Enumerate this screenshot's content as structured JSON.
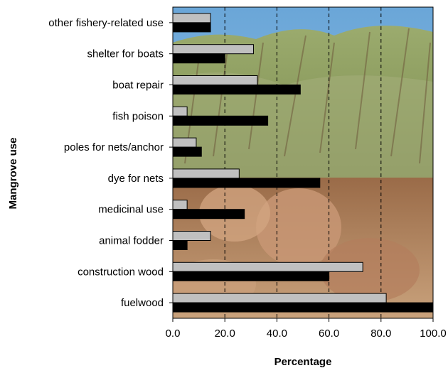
{
  "chart_data": {
    "type": "bar",
    "orientation": "horizontal",
    "categories": [
      "other fishery-related use",
      "shelter for boats",
      "boat repair",
      "fish poison",
      "poles for nets/anchor",
      "dye for nets",
      "medicinal use",
      "animal fodder",
      "construction wood",
      "fuelwood"
    ],
    "series": [
      {
        "color": "#c0c0c0",
        "values": [
          14.5,
          31,
          32.5,
          5.5,
          9,
          25.5,
          5.5,
          14.5,
          73,
          82
        ]
      },
      {
        "color": "#000000",
        "values": [
          14.5,
          20,
          49,
          36.5,
          11,
          56.5,
          27.5,
          5.5,
          60,
          100
        ]
      }
    ],
    "xlabel": "Percentage",
    "ylabel": "Mangrove use",
    "xlim": [
      0,
      100
    ],
    "xticks": [
      "0.0",
      "20.0",
      "40.0",
      "60.0",
      "80.0",
      "100.0"
    ],
    "grid": "vertical dashed",
    "legend": "none",
    "background": "photograph of mangrove vegetation and livestock"
  }
}
